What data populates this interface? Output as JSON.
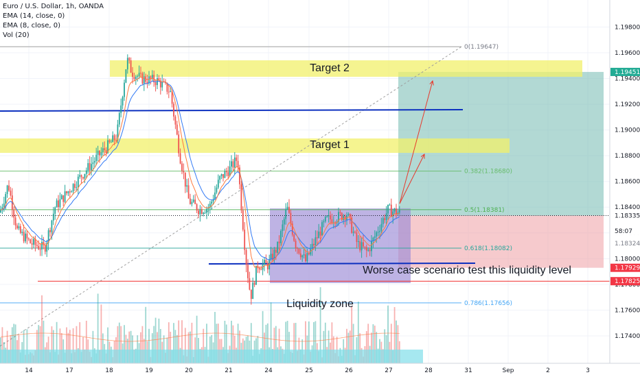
{
  "legend": {
    "symbol": "Euro / U.S. Dollar, 1h, OANDA",
    "ema14": "EMA (14, close, 0)",
    "ema8": "EMA (8, close, 0)",
    "vol": "Vol (20)"
  },
  "annotations": {
    "target2": "Target 2",
    "target1": "Target 1",
    "worse_case": "Worse case scenario test this liquidity level",
    "liquidity_zone": "Liquidity zone"
  },
  "fib_labels": [
    "0(1.19647)",
    "0.382(1.18680)",
    "0.5(1.18381)",
    "0.618(1.18082)",
    "0.786(1.17656)"
  ],
  "price_tags": {
    "upper": "1.19451",
    "current": "1.18335",
    "countdown": "58:07",
    "ema": "1.18324",
    "stop": "1.17929",
    "liquidity": "1.17825"
  },
  "chart_data": {
    "type": "candlestick",
    "symbol": "EURUSD",
    "timeframe": "1h",
    "ylim": [
      1.1732,
      1.2001
    ],
    "y_ticks": [
      "1.19800",
      "1.19600",
      "1.19400",
      "1.19200",
      "1.19000",
      "1.18800",
      "1.18600",
      "1.18400",
      "1.18200",
      "1.18000",
      "1.17800",
      "1.17600",
      "1.17400"
    ],
    "x_ticks": [
      "14",
      "17",
      "18",
      "19",
      "20",
      "21",
      "24",
      "25",
      "26",
      "27",
      "28",
      "31",
      "Sep",
      "2",
      "3"
    ],
    "price_path": [
      [
        0,
        1.1836
      ],
      [
        12,
        1.1858
      ],
      [
        25,
        1.1822
      ],
      [
        45,
        1.1812
      ],
      [
        65,
        1.1808
      ],
      [
        80,
        1.184
      ],
      [
        105,
        1.1856
      ],
      [
        140,
        1.1878
      ],
      [
        170,
        1.1895
      ],
      [
        185,
        1.1955
      ],
      [
        192,
        1.1945
      ],
      [
        205,
        1.194
      ],
      [
        230,
        1.1938
      ],
      [
        248,
        1.193
      ],
      [
        262,
        1.188
      ],
      [
        275,
        1.1845
      ],
      [
        290,
        1.1838
      ],
      [
        305,
        1.184
      ],
      [
        320,
        1.1862
      ],
      [
        335,
        1.187
      ],
      [
        346,
        1.1878
      ],
      [
        350,
        1.185
      ],
      [
        358,
        1.18
      ],
      [
        365,
        1.177
      ],
      [
        375,
        1.1795
      ],
      [
        390,
        1.1795
      ],
      [
        405,
        1.181
      ],
      [
        418,
        1.184
      ],
      [
        430,
        1.1812
      ],
      [
        445,
        1.1798
      ],
      [
        460,
        1.1815
      ],
      [
        475,
        1.183
      ],
      [
        490,
        1.1832
      ],
      [
        505,
        1.1835
      ],
      [
        520,
        1.1812
      ],
      [
        535,
        1.1805
      ],
      [
        550,
        1.1822
      ],
      [
        565,
        1.1838
      ],
      [
        585,
        1.1835
      ]
    ]
  },
  "colors": {
    "up": "#26a69a",
    "down": "#ef5350",
    "ema14": "#3179f5",
    "ema8": "#ff7a3d",
    "target_zone": "#f2f06b",
    "range_box": "#9b8bd6",
    "profit": "#7fbfb8",
    "loss": "#ee9ea4",
    "blue_line": "#0b2fbf",
    "red_line": "#ef2b2b",
    "arrow": "#e8392b"
  }
}
